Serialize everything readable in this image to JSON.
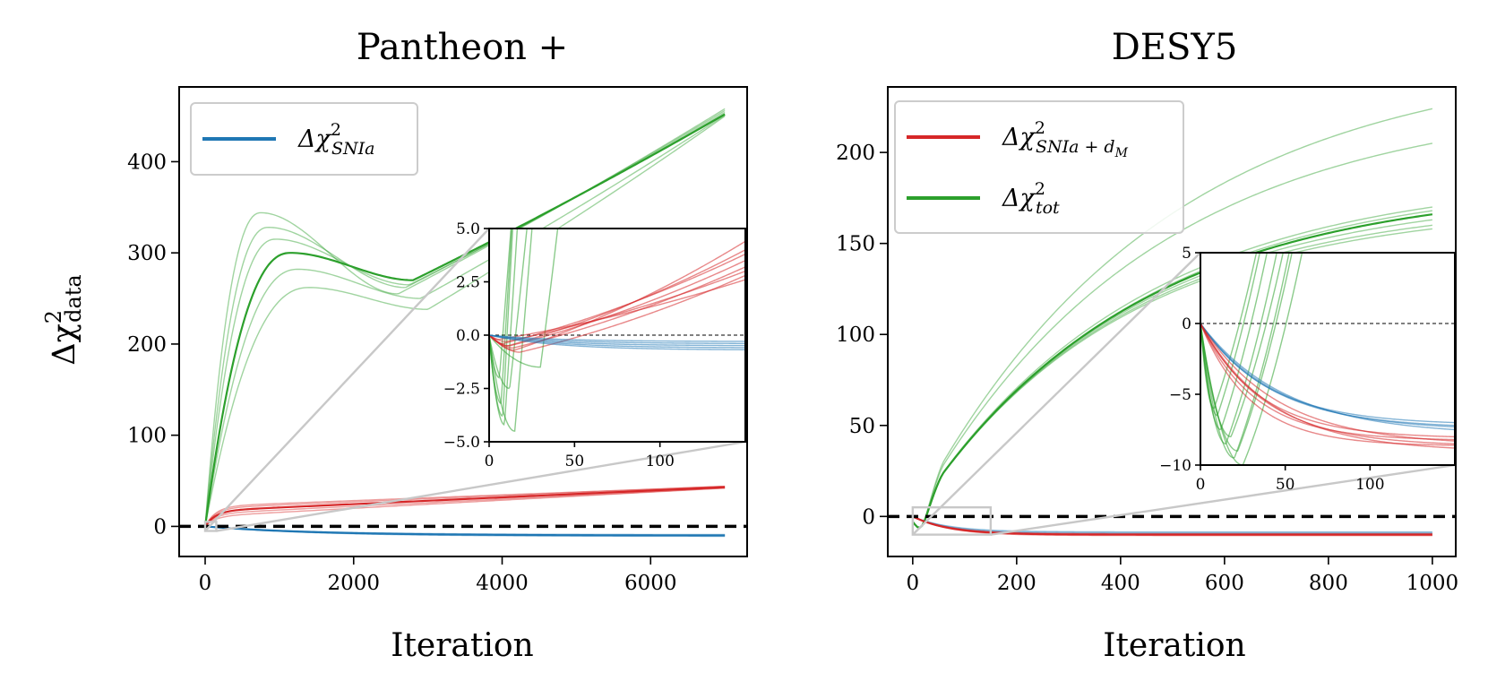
{
  "colors": {
    "blue": "#1f77b4",
    "red": "#d62728",
    "green": "#2ca02c",
    "connector": "#c8c8c8",
    "zero": "#000000"
  },
  "ylabel": {
    "main": "Δχ",
    "sup": "2",
    "sub": "data"
  },
  "legend": {
    "snia": {
      "main": "Δχ",
      "sup": "2",
      "sub": "SNIa"
    },
    "sniadm": {
      "main": "Δχ",
      "sup": "2",
      "sub": "SNIa + d",
      "subsub": "M"
    },
    "tot": {
      "main": "Δχ",
      "sup": "2",
      "sub": "tot"
    }
  },
  "chart_data": [
    {
      "type": "line",
      "title": "Pantheon +",
      "xlabel": "Iteration",
      "ylabel": "Δχ²_data",
      "xlim": [
        -350,
        7300
      ],
      "ylim": [
        -33,
        482
      ],
      "xticks": [
        0,
        2000,
        4000,
        6000
      ],
      "xtick_labels": [
        "0",
        "2000",
        "4000",
        "6000"
      ],
      "yticks": [
        0,
        100,
        200,
        300,
        400
      ],
      "ytick_labels": [
        "0",
        "100",
        "200",
        "300",
        "400"
      ],
      "legend": [
        "Δχ²_SNIa"
      ],
      "legend_position": "top-left",
      "zero_line": true,
      "series": [
        {
          "name": "Δχ²_tot",
          "color": "green",
          "kind": "hump",
          "x_end": 7000,
          "members": [
            {
              "peak": 300,
              "x_peak": 1150,
              "dip": 270,
              "x_dip": 2800,
              "end": 452,
              "bold": true
            },
            {
              "peak": 344,
              "x_peak": 750,
              "dip": 255,
              "x_dip": 2600,
              "end": 458
            },
            {
              "peak": 328,
              "x_peak": 850,
              "dip": 262,
              "x_dip": 2700,
              "end": 456
            },
            {
              "peak": 315,
              "x_peak": 950,
              "dip": 265,
              "x_dip": 2750,
              "end": 454
            },
            {
              "peak": 282,
              "x_peak": 1250,
              "dip": 250,
              "x_dip": 2900,
              "end": 451
            },
            {
              "peak": 262,
              "x_peak": 1400,
              "dip": 238,
              "x_dip": 3000,
              "end": 450
            }
          ]
        },
        {
          "name": "Δχ²_SNIa+d_M",
          "color": "red",
          "kind": "rise",
          "x_end": 7000,
          "members": [
            {
              "shoulder": 17,
              "end": 43,
              "bold": true
            },
            {
              "shoulder": 14,
              "end": 42
            },
            {
              "shoulder": 20,
              "end": 44
            },
            {
              "shoulder": 11,
              "end": 42
            },
            {
              "shoulder": 22,
              "end": 44
            }
          ]
        },
        {
          "name": "Δχ²_SNIa",
          "color": "blue",
          "kind": "decay",
          "x_end": 7000,
          "members": [
            {
              "end": -10,
              "bold": true
            },
            {
              "end": -9
            },
            {
              "end": -11
            },
            {
              "end": -10
            }
          ]
        }
      ],
      "zoom_box": {
        "xlim": [
          0,
          150
        ],
        "ylim": [
          -5,
          5
        ]
      },
      "inset": {
        "xlim": [
          0,
          150
        ],
        "ylim": [
          -5,
          5
        ],
        "xticks": [
          0,
          50,
          100
        ],
        "xtick_labels": [
          "0",
          "50",
          "100"
        ],
        "yticks": [
          -5.0,
          -2.5,
          0.0,
          2.5,
          5.0
        ],
        "ytick_labels": [
          "−5.0",
          "−2.5",
          "0.0",
          "2.5",
          "5.0"
        ],
        "series": [
          {
            "name": "Δχ²_tot",
            "color": "green",
            "kind": "tot",
            "x_end": 150,
            "members": [
              {
                "min": -4.2,
                "t_min": 9,
                "rate": 1.2
              },
              {
                "min": -3.8,
                "t_min": 8,
                "rate": 1.5
              },
              {
                "min": -4.5,
                "t_min": 15,
                "rate": 0.9
              },
              {
                "min": -3.2,
                "t_min": 7,
                "rate": 1.3
              },
              {
                "min": -2.5,
                "t_min": 12,
                "rate": 0.7
              },
              {
                "min": -1.5,
                "t_min": 30,
                "rate": 0.6
              },
              {
                "min": -2.0,
                "t_min": 6,
                "rate": 1.0
              }
            ]
          },
          {
            "name": "Δχ²_SNIa+d_M",
            "color": "red",
            "kind": "red_inset",
            "x_end": 150,
            "members": [
              {
                "dip": -0.5,
                "t_dip": 12,
                "end": 3.5
              },
              {
                "dip": -0.7,
                "t_dip": 15,
                "end": 4.4
              },
              {
                "dip": -0.3,
                "t_dip": 10,
                "end": 3.0
              },
              {
                "dip": -0.8,
                "t_dip": 18,
                "end": 2.8
              },
              {
                "dip": -0.4,
                "t_dip": 8,
                "end": 3.8
              },
              {
                "dip": -0.6,
                "t_dip": 14,
                "end": 3.2
              },
              {
                "dip": -0.2,
                "t_dip": 6,
                "end": 2.6
              },
              {
                "dip": -0.5,
                "t_dip": 11,
                "end": 4.0
              }
            ]
          },
          {
            "name": "Δχ²_SNIa",
            "color": "blue",
            "kind": "blue_inset",
            "x_end": 150,
            "members": [
              {
                "end": -0.3
              },
              {
                "end": -0.5
              },
              {
                "end": -0.7
              },
              {
                "end": -0.4
              },
              {
                "end": -0.6
              }
            ]
          }
        ]
      }
    },
    {
      "type": "line",
      "title": "DESY5",
      "xlabel": "Iteration",
      "ylabel": "",
      "xlim": [
        -48,
        1045
      ],
      "ylim": [
        -22,
        236
      ],
      "xticks": [
        0,
        200,
        400,
        600,
        800,
        1000
      ],
      "xtick_labels": [
        "0",
        "200",
        "400",
        "600",
        "800",
        "1000"
      ],
      "yticks": [
        0,
        50,
        100,
        150,
        200
      ],
      "ytick_labels": [
        "0",
        "50",
        "100",
        "150",
        "200"
      ],
      "legend": [
        "Δχ²_SNIa+d_M",
        "Δχ²_tot"
      ],
      "legend_position": "top-left",
      "zero_line": true,
      "series": [
        {
          "name": "Δχ²_tot",
          "color": "green",
          "kind": "sat",
          "x_end": 1000,
          "members": [
            {
              "end": 166,
              "tau": 420,
              "bold": true
            },
            {
              "end": 224,
              "tau": 470
            },
            {
              "end": 205,
              "tau": 450
            },
            {
              "end": 170,
              "tau": 425
            },
            {
              "end": 168,
              "tau": 430
            },
            {
              "end": 163,
              "tau": 410
            },
            {
              "end": 160,
              "tau": 400
            },
            {
              "end": 158,
              "tau": 395
            }
          ]
        },
        {
          "name": "Δχ²_SNIa",
          "color": "blue",
          "kind": "decay2",
          "x_end": 1000,
          "members": [
            {
              "end": -9
            },
            {
              "end": -8.5
            },
            {
              "end": -9.5
            }
          ]
        },
        {
          "name": "Δχ²_SNIa+d_M",
          "color": "red",
          "kind": "decay2",
          "x_end": 1000,
          "members": [
            {
              "end": -10,
              "bold": true
            },
            {
              "end": -9.5
            },
            {
              "end": -10.5
            }
          ]
        }
      ],
      "zoom_box": {
        "xlim": [
          0,
          150
        ],
        "ylim": [
          -10,
          5
        ]
      },
      "inset": {
        "xlim": [
          0,
          150
        ],
        "ylim": [
          -10,
          5
        ],
        "xticks": [
          0,
          50,
          100
        ],
        "xtick_labels": [
          "0",
          "50",
          "100"
        ],
        "yticks": [
          -10,
          -5,
          0,
          5
        ],
        "ytick_labels": [
          "−10",
          "−5",
          "0",
          "5"
        ],
        "series": [
          {
            "name": "Δχ²_tot",
            "color": "green",
            "kind": "tot",
            "x_end": 150,
            "members": [
              {
                "min": -7.5,
                "t_min": 12,
                "rate": 0.35
              },
              {
                "min": -8.5,
                "t_min": 15,
                "rate": 0.33
              },
              {
                "min": -9.5,
                "t_min": 20,
                "rate": 0.32
              },
              {
                "min": -6.5,
                "t_min": 10,
                "rate": 0.36
              },
              {
                "min": -8.0,
                "t_min": 18,
                "rate": 0.3
              },
              {
                "min": -9.0,
                "t_min": 22,
                "rate": 0.31
              },
              {
                "min": -6.0,
                "t_min": 8,
                "rate": 0.34
              },
              {
                "min": -10.0,
                "t_min": 25,
                "rate": 0.29
              }
            ]
          },
          {
            "name": "Δχ²_SNIa",
            "color": "blue",
            "kind": "decay_inset",
            "x_end": 150,
            "members": [
              {
                "end": -7.3,
                "tau": 45
              },
              {
                "end": -7.0,
                "tau": 40
              },
              {
                "end": -7.5,
                "tau": 50
              },
              {
                "end": -7.2,
                "tau": 42
              }
            ]
          },
          {
            "name": "Δχ²_SNIa+d_M",
            "color": "red",
            "kind": "decay_inset",
            "x_end": 150,
            "members": [
              {
                "end": -8.5,
                "tau": 38
              },
              {
                "end": -8.2,
                "tau": 32
              },
              {
                "end": -8.8,
                "tau": 42
              },
              {
                "end": -8.0,
                "tau": 35
              },
              {
                "end": -8.6,
                "tau": 30
              },
              {
                "end": -8.3,
                "tau": 45
              }
            ]
          }
        ]
      }
    }
  ]
}
